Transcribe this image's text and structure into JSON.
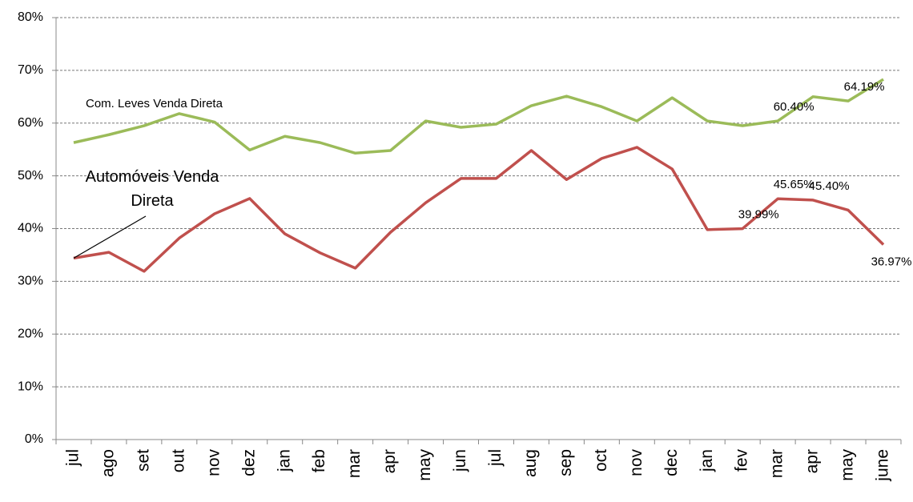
{
  "chart_data": {
    "type": "line",
    "categories": [
      "jul",
      "ago",
      "set",
      "out",
      "nov",
      "dez",
      "jan",
      "feb",
      "mar",
      "apr",
      "may",
      "jun",
      "jul",
      "aug",
      "sep",
      "oct",
      "nov",
      "dec",
      "jan",
      "fev",
      "mar",
      "apr",
      "may",
      "june"
    ],
    "series": [
      {
        "name": "Com. Leves Venda Direta",
        "color": "#9bbb59",
        "values": [
          56.3,
          57.8,
          59.5,
          61.8,
          60.2,
          54.9,
          57.5,
          56.3,
          54.3,
          54.8,
          60.4,
          59.2,
          59.8,
          63.3,
          65.1,
          63.1,
          60.4,
          64.8,
          60.4,
          59.5,
          60.4,
          65.0,
          64.19,
          68.3
        ],
        "value_labels": [
          null,
          null,
          null,
          null,
          null,
          null,
          null,
          null,
          null,
          null,
          null,
          null,
          null,
          null,
          null,
          null,
          null,
          null,
          null,
          null,
          "60.40%",
          null,
          "64.19%",
          null
        ]
      },
      {
        "name": "Automóveis Venda Direta",
        "color": "#c0504d",
        "values": [
          34.4,
          35.5,
          31.9,
          38.2,
          42.8,
          45.7,
          39.0,
          35.4,
          32.5,
          39.3,
          44.9,
          49.5,
          49.5,
          54.8,
          49.3,
          53.3,
          55.4,
          51.3,
          39.8,
          39.99,
          45.65,
          45.4,
          43.5,
          36.97
        ],
        "value_labels": [
          null,
          null,
          null,
          null,
          null,
          null,
          null,
          null,
          null,
          null,
          null,
          null,
          null,
          null,
          null,
          null,
          null,
          null,
          null,
          "39.99%",
          "45.65%",
          "45.40%",
          null,
          "36.97%"
        ]
      }
    ],
    "ylim": [
      0,
      80
    ],
    "yticks": [
      {
        "value": 0,
        "label": "0%"
      },
      {
        "value": 10,
        "label": "10%"
      },
      {
        "value": 20,
        "label": "20%"
      },
      {
        "value": 30,
        "label": "30%"
      },
      {
        "value": 40,
        "label": "40%"
      },
      {
        "value": 50,
        "label": "50%"
      },
      {
        "value": 60,
        "label": "60%"
      },
      {
        "value": 70,
        "label": "70%"
      },
      {
        "value": 80,
        "label": "80%"
      }
    ],
    "grid": true
  }
}
